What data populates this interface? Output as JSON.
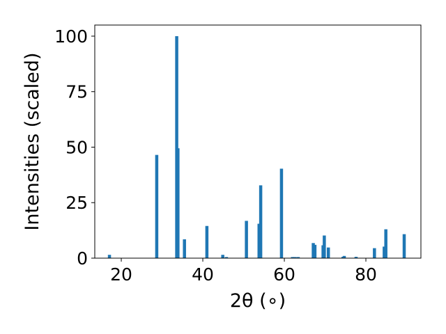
{
  "chart_data": {
    "type": "bar",
    "xlabel": "2θ (∘)",
    "ylabel": "Intensities (scaled)",
    "xlim": [
      13.5,
      93.5
    ],
    "ylim": [
      0,
      105
    ],
    "xticks": [
      20,
      40,
      60,
      80
    ],
    "yticks": [
      0,
      25,
      50,
      75,
      100
    ],
    "bar_color": "#1f77b4",
    "grid": false,
    "bars": [
      {
        "x": 17.1,
        "y": 1.5
      },
      {
        "x": 28.7,
        "y": 46.5
      },
      {
        "x": 33.6,
        "y": 100
      },
      {
        "x": 33.9,
        "y": 49.5
      },
      {
        "x": 35.5,
        "y": 8.5
      },
      {
        "x": 41.0,
        "y": 14.5
      },
      {
        "x": 44.9,
        "y": 1.5
      },
      {
        "x": 45.8,
        "y": 0.5
      },
      {
        "x": 50.7,
        "y": 16.8
      },
      {
        "x": 53.8,
        "y": 15.5
      },
      {
        "x": 54.2,
        "y": 32.8
      },
      {
        "x": 59.3,
        "y": 40.3
      },
      {
        "x": 62.0,
        "y": 0.5
      },
      {
        "x": 62.6,
        "y": 0.5
      },
      {
        "x": 63.4,
        "y": 0.5
      },
      {
        "x": 67.1,
        "y": 6.8
      },
      {
        "x": 67.5,
        "y": 6.0
      },
      {
        "x": 69.5,
        "y": 5.8
      },
      {
        "x": 69.8,
        "y": 10.2
      },
      {
        "x": 70.8,
        "y": 4.8
      },
      {
        "x": 74.4,
        "y": 0.6
      },
      {
        "x": 74.7,
        "y": 1.0
      },
      {
        "x": 77.6,
        "y": 0.6
      },
      {
        "x": 82.1,
        "y": 4.5
      },
      {
        "x": 84.5,
        "y": 5.2
      },
      {
        "x": 84.9,
        "y": 13.0
      },
      {
        "x": 89.4,
        "y": 10.8
      }
    ]
  }
}
